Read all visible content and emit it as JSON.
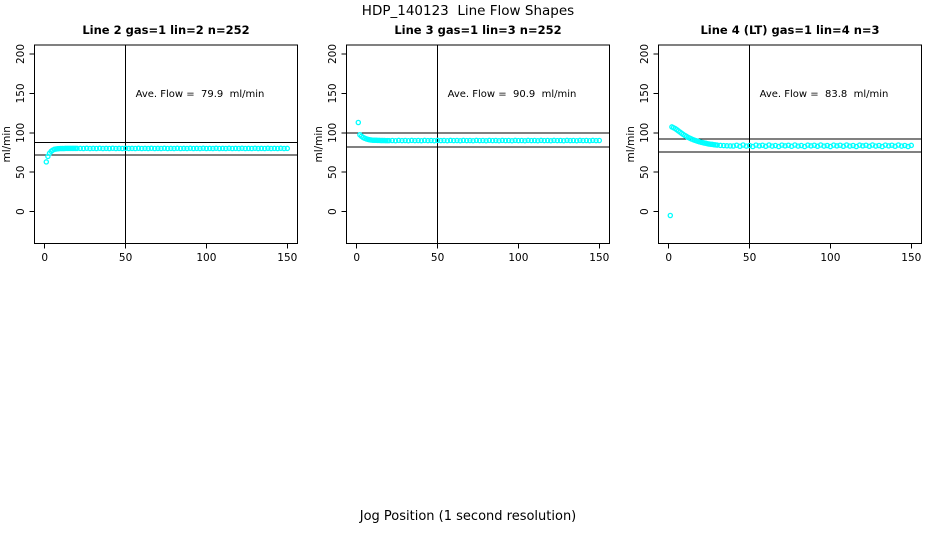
{
  "title": "HDP_140123  Line Flow Shapes",
  "xlabel": "Jog Position (1 second resolution)",
  "colors": {
    "background": "#ffffff",
    "axis": "#000000",
    "points": "#00ffff"
  },
  "chart_data": [
    {
      "type": "scatter",
      "title": "Line 2 gas=1 lin=2 n=252",
      "line": 2,
      "gas": 1,
      "lin": 2,
      "n": 252,
      "ave_flow": 79.9,
      "annotation": "Ave. Flow =  79.9  ml/min",
      "ylabel": "ml/min",
      "xticks": [
        0,
        50,
        100,
        150
      ],
      "yticks": [
        0,
        50,
        100,
        150,
        200
      ],
      "xlim": [
        -6.3,
        156.3
      ],
      "ylim": [
        -40.5,
        211.4
      ],
      "vline_x": 50,
      "hlines": [
        87.9,
        71.9
      ],
      "grid": false,
      "points": [
        [
          1,
          63
        ],
        [
          2,
          70
        ],
        [
          3,
          74
        ],
        [
          4,
          76.5
        ],
        [
          5,
          78
        ],
        [
          6,
          79
        ],
        [
          7,
          79.4
        ],
        [
          8,
          79.7
        ],
        [
          9,
          79.9
        ],
        [
          10,
          80
        ],
        [
          11,
          80.1
        ],
        [
          12,
          80.1
        ],
        [
          13,
          80.2
        ],
        [
          14,
          80.2
        ],
        [
          15,
          80.2
        ],
        [
          16,
          80.2
        ],
        [
          17,
          80.2
        ],
        [
          18,
          80.2
        ],
        [
          19,
          80.2
        ],
        [
          20,
          80.2
        ],
        [
          22,
          80.2
        ],
        [
          24,
          80.0
        ],
        [
          26,
          80.3
        ],
        [
          28,
          80.1
        ],
        [
          30,
          80.2
        ],
        [
          32,
          80.0
        ],
        [
          34,
          80.3
        ],
        [
          36,
          80.1
        ],
        [
          38,
          80.2
        ],
        [
          40,
          80.0
        ],
        [
          42,
          80.3
        ],
        [
          44,
          80.1
        ],
        [
          46,
          80.2
        ],
        [
          48,
          80.0
        ],
        [
          50,
          80.3
        ],
        [
          52,
          80.1
        ],
        [
          54,
          80.2
        ],
        [
          56,
          80.0
        ],
        [
          58,
          80.3
        ],
        [
          60,
          80.1
        ],
        [
          62,
          80.2
        ],
        [
          64,
          80.0
        ],
        [
          66,
          80.3
        ],
        [
          68,
          80.1
        ],
        [
          70,
          80.2
        ],
        [
          72,
          80.0
        ],
        [
          74,
          80.3
        ],
        [
          76,
          80.1
        ],
        [
          78,
          80.2
        ],
        [
          80,
          80.0
        ],
        [
          82,
          80.3
        ],
        [
          84,
          80.1
        ],
        [
          86,
          80.2
        ],
        [
          88,
          80.0
        ],
        [
          90,
          80.3
        ],
        [
          92,
          80.1
        ],
        [
          94,
          80.2
        ],
        [
          96,
          80.0
        ],
        [
          98,
          80.3
        ],
        [
          100,
          80.1
        ],
        [
          102,
          80.2
        ],
        [
          104,
          80.0
        ],
        [
          106,
          80.3
        ],
        [
          108,
          80.1
        ],
        [
          110,
          80.2
        ],
        [
          112,
          80.0
        ],
        [
          114,
          80.3
        ],
        [
          116,
          80.1
        ],
        [
          118,
          80.2
        ],
        [
          120,
          80.0
        ],
        [
          122,
          80.3
        ],
        [
          124,
          80.1
        ],
        [
          126,
          80.2
        ],
        [
          128,
          80.0
        ],
        [
          130,
          80.3
        ],
        [
          132,
          80.1
        ],
        [
          134,
          80.2
        ],
        [
          136,
          80.0
        ],
        [
          138,
          80.3
        ],
        [
          140,
          80.1
        ],
        [
          142,
          80.2
        ],
        [
          144,
          80.0
        ],
        [
          146,
          80.3
        ],
        [
          148,
          80.1
        ],
        [
          150,
          80.2
        ]
      ]
    },
    {
      "type": "scatter",
      "title": "Line 3 gas=1 lin=3 n=252",
      "line": 3,
      "gas": 1,
      "lin": 3,
      "n": 252,
      "ave_flow": 90.9,
      "annotation": "Ave. Flow =  90.9  ml/min",
      "ylabel": "ml/min",
      "xticks": [
        0,
        50,
        100,
        150
      ],
      "yticks": [
        0,
        50,
        100,
        150,
        200
      ],
      "xlim": [
        -6.3,
        156.3
      ],
      "ylim": [
        -40.5,
        211.4
      ],
      "vline_x": 50,
      "hlines": [
        100.0,
        81.8
      ],
      "grid": false,
      "points": [
        [
          1,
          113
        ],
        [
          2,
          97.5
        ],
        [
          3,
          95.5
        ],
        [
          4,
          94
        ],
        [
          5,
          93
        ],
        [
          6,
          92.2
        ],
        [
          7,
          91.6
        ],
        [
          8,
          91.1
        ],
        [
          9,
          90.8
        ],
        [
          10,
          90.6
        ],
        [
          11,
          90.5
        ],
        [
          12,
          90.4
        ],
        [
          13,
          90.3
        ],
        [
          14,
          90.3
        ],
        [
          15,
          90.2
        ],
        [
          16,
          90.2
        ],
        [
          17,
          90.2
        ],
        [
          18,
          90.1
        ],
        [
          19,
          90.1
        ],
        [
          20,
          90.1
        ],
        [
          22,
          90.2
        ],
        [
          24,
          90.0
        ],
        [
          26,
          90.3
        ],
        [
          28,
          90.1
        ],
        [
          30,
          90.2
        ],
        [
          32,
          90.0
        ],
        [
          34,
          90.3
        ],
        [
          36,
          90.1
        ],
        [
          38,
          90.2
        ],
        [
          40,
          90.0
        ],
        [
          42,
          90.3
        ],
        [
          44,
          90.1
        ],
        [
          46,
          90.2
        ],
        [
          48,
          90.0
        ],
        [
          50,
          90.3
        ],
        [
          52,
          90.1
        ],
        [
          54,
          90.2
        ],
        [
          56,
          90.0
        ],
        [
          58,
          90.3
        ],
        [
          60,
          90.1
        ],
        [
          62,
          90.2
        ],
        [
          64,
          90.0
        ],
        [
          66,
          90.3
        ],
        [
          68,
          90.1
        ],
        [
          70,
          90.2
        ],
        [
          72,
          90.0
        ],
        [
          74,
          90.3
        ],
        [
          76,
          90.1
        ],
        [
          78,
          90.2
        ],
        [
          80,
          90.0
        ],
        [
          82,
          90.3
        ],
        [
          84,
          90.1
        ],
        [
          86,
          90.2
        ],
        [
          88,
          90.0
        ],
        [
          90,
          90.3
        ],
        [
          92,
          90.1
        ],
        [
          94,
          90.2
        ],
        [
          96,
          90.0
        ],
        [
          98,
          90.3
        ],
        [
          100,
          90.1
        ],
        [
          102,
          90.2
        ],
        [
          104,
          90.0
        ],
        [
          106,
          90.3
        ],
        [
          108,
          90.1
        ],
        [
          110,
          90.2
        ],
        [
          112,
          90.0
        ],
        [
          114,
          90.3
        ],
        [
          116,
          90.1
        ],
        [
          118,
          90.2
        ],
        [
          120,
          90.0
        ],
        [
          122,
          90.3
        ],
        [
          124,
          90.1
        ],
        [
          126,
          90.2
        ],
        [
          128,
          90.0
        ],
        [
          130,
          90.3
        ],
        [
          132,
          90.1
        ],
        [
          134,
          90.2
        ],
        [
          136,
          90.0
        ],
        [
          138,
          90.3
        ],
        [
          140,
          90.1
        ],
        [
          142,
          90.2
        ],
        [
          144,
          90.0
        ],
        [
          146,
          90.3
        ],
        [
          148,
          90.1
        ],
        [
          150,
          90.2
        ]
      ]
    },
    {
      "type": "scatter",
      "title": "Line 4 (LT) gas=1 lin=4 n=3",
      "line": 4,
      "line_note": "(LT)",
      "gas": 1,
      "lin": 4,
      "n": 3,
      "ave_flow": 83.8,
      "annotation": "Ave. Flow =  83.8  ml/min",
      "ylabel": "ml/min",
      "xticks": [
        0,
        50,
        100,
        150
      ],
      "yticks": [
        0,
        50,
        100,
        150,
        200
      ],
      "xlim": [
        -6.3,
        156.3
      ],
      "ylim": [
        -40.5,
        211.4
      ],
      "vline_x": 50,
      "hlines": [
        92.2,
        75.4
      ],
      "grid": false,
      "points": [
        [
          1,
          -5
        ],
        [
          2,
          107.5
        ],
        [
          3,
          106.5
        ],
        [
          4,
          105.3
        ],
        [
          5,
          103.9
        ],
        [
          6,
          102.4
        ],
        [
          7,
          100.9
        ],
        [
          8,
          99.4
        ],
        [
          9,
          98
        ],
        [
          10,
          96.6
        ],
        [
          11,
          95.4
        ],
        [
          12,
          94.2
        ],
        [
          13,
          93.2
        ],
        [
          14,
          92.2
        ],
        [
          15,
          91.4
        ],
        [
          16,
          90.6
        ],
        [
          17,
          89.9
        ],
        [
          18,
          89.2
        ],
        [
          19,
          88.6
        ],
        [
          20,
          88
        ],
        [
          21,
          87.5
        ],
        [
          22,
          87
        ],
        [
          23,
          86.6
        ],
        [
          24,
          86.2
        ],
        [
          25,
          85.8
        ],
        [
          26,
          85.5
        ],
        [
          27,
          85.2
        ],
        [
          28,
          84.9
        ],
        [
          29,
          84.6
        ],
        [
          30,
          84.4
        ],
        [
          32,
          84
        ],
        [
          34,
          83.7
        ],
        [
          36,
          83.5
        ],
        [
          38,
          83.3
        ],
        [
          40,
          83.2
        ],
        [
          42,
          84.2
        ],
        [
          44,
          82.8
        ],
        [
          46,
          84.5
        ],
        [
          48,
          83.1
        ],
        [
          50,
          83.9
        ],
        [
          52,
          82.6
        ],
        [
          54,
          84.4
        ],
        [
          56,
          83.4
        ],
        [
          58,
          84.2
        ],
        [
          60,
          82.8
        ],
        [
          62,
          84.5
        ],
        [
          64,
          83.1
        ],
        [
          66,
          83.9
        ],
        [
          68,
          82.6
        ],
        [
          70,
          84.4
        ],
        [
          72,
          83.4
        ],
        [
          74,
          84.2
        ],
        [
          76,
          82.8
        ],
        [
          78,
          84.5
        ],
        [
          80,
          83.1
        ],
        [
          82,
          83.9
        ],
        [
          84,
          82.6
        ],
        [
          86,
          84.4
        ],
        [
          88,
          83.4
        ],
        [
          90,
          84.2
        ],
        [
          92,
          82.8
        ],
        [
          94,
          84.5
        ],
        [
          96,
          83.1
        ],
        [
          98,
          83.9
        ],
        [
          100,
          82.6
        ],
        [
          102,
          84.4
        ],
        [
          104,
          83.4
        ],
        [
          106,
          84.2
        ],
        [
          108,
          82.8
        ],
        [
          110,
          84.5
        ],
        [
          112,
          83.1
        ],
        [
          114,
          83.9
        ],
        [
          116,
          82.6
        ],
        [
          118,
          84.4
        ],
        [
          120,
          83.4
        ],
        [
          122,
          84.2
        ],
        [
          124,
          82.8
        ],
        [
          126,
          84.5
        ],
        [
          128,
          83.1
        ],
        [
          130,
          83.9
        ],
        [
          132,
          82.6
        ],
        [
          134,
          84.4
        ],
        [
          136,
          83.4
        ],
        [
          138,
          84.2
        ],
        [
          140,
          82.8
        ],
        [
          142,
          84.5
        ],
        [
          144,
          83.1
        ],
        [
          146,
          83.9
        ],
        [
          148,
          82.6
        ],
        [
          150,
          84.0
        ]
      ]
    }
  ]
}
